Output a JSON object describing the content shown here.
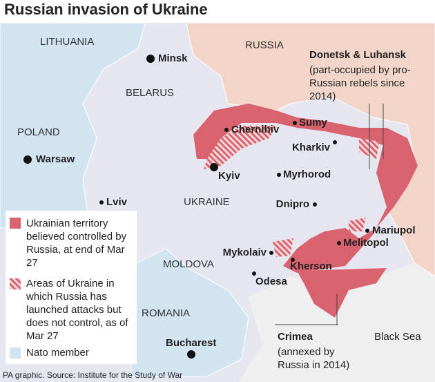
{
  "title": "Russian invasion of Ukraine",
  "countries": [
    "LITHUANIA",
    "RUSSIA",
    "BELARUS",
    "POLAND",
    "UKRAINE",
    "MOLDOVA",
    "ROMANIA"
  ],
  "cities": [
    "Minsk",
    "Chernihiv",
    "Sumy",
    "Kharkiv",
    "Warsaw",
    "Kyiv",
    "Myrhorod",
    "Lviv",
    "Dnipro",
    "Mariupol",
    "Melitopol",
    "Mykolaiv",
    "Kherson",
    "Odesa",
    "Bucharest"
  ],
  "sea": "Black Sea",
  "annotations": [
    {
      "title": "Donetsk & Luhansk",
      "text": "(part-occupied by pro-Russian rebels since 2014)"
    },
    {
      "title": "Crimea",
      "text": "(annexed by Russia in 2014)"
    }
  ],
  "legend": [
    "Ukrainian territory believed controlled by Russia, at end of Mar 27",
    "Areas of Ukraine in which Russia has launched attacks but does not control, as of Mar 27",
    "Nato member"
  ],
  "source": "PA graphic. Source: Institute for the Study of War"
}
